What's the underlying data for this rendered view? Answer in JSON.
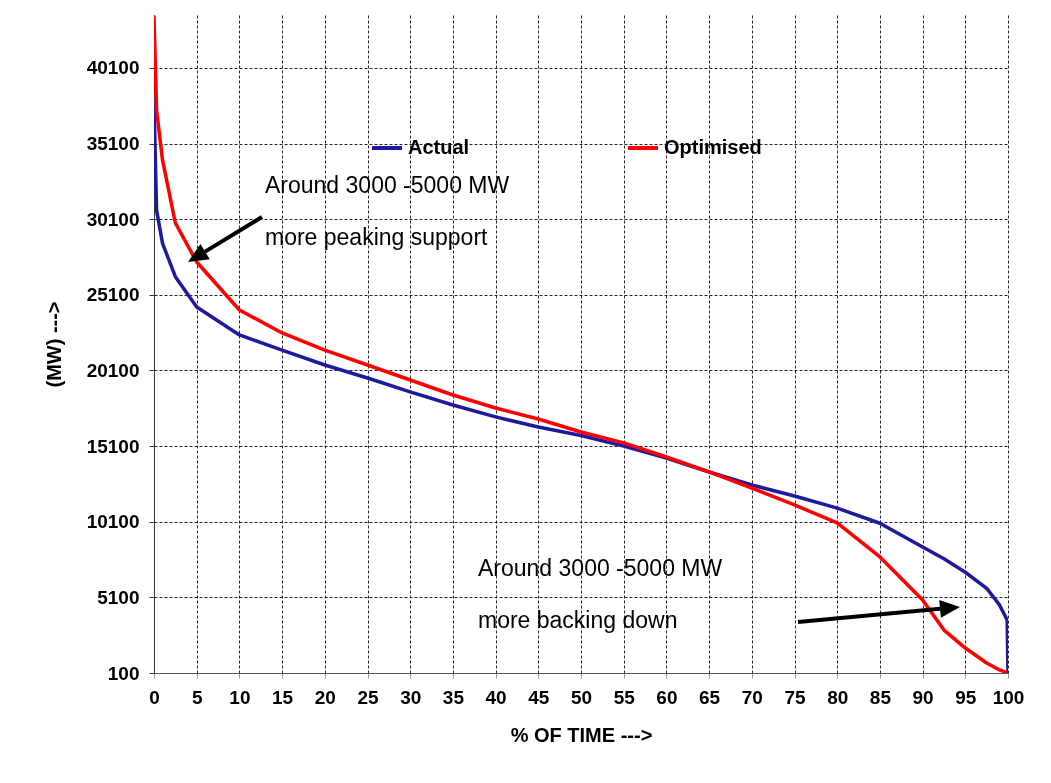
{
  "chart_data": {
    "type": "line",
    "xlabel": "% OF TIME --->",
    "ylabel": "(MW) --->",
    "x": [
      0,
      0.3,
      1,
      2.5,
      5,
      10,
      15,
      20,
      25,
      30,
      35,
      40,
      45,
      50,
      55,
      60,
      65,
      70,
      75,
      80,
      85,
      90,
      92.5,
      95,
      97.5,
      99,
      99.9,
      100
    ],
    "series": [
      {
        "name": "Actual",
        "color": "#1f1a9c",
        "values": [
          37800,
          30700,
          28500,
          26300,
          24300,
          22450,
          21450,
          20460,
          19600,
          18680,
          17820,
          17030,
          16360,
          15800,
          15100,
          14310,
          13390,
          12530,
          11800,
          11000,
          10000,
          8430,
          7650,
          6760,
          5700,
          4600,
          3600,
          100
        ]
      },
      {
        "name": "Optimised",
        "color": "#ff0000",
        "values": [
          43470,
          37300,
          34000,
          29850,
          27270,
          24100,
          22580,
          21450,
          20460,
          19470,
          18480,
          17620,
          16890,
          16030,
          15310,
          14380,
          13390,
          12330,
          11210,
          10020,
          7770,
          4930,
          2940,
          1750,
          760,
          300,
          120,
          100
        ]
      }
    ],
    "xlim": [
      0,
      100
    ],
    "ylim": [
      100,
      43600
    ],
    "xticks": [
      0,
      5,
      10,
      15,
      20,
      25,
      30,
      35,
      40,
      45,
      50,
      55,
      60,
      65,
      70,
      75,
      80,
      85,
      90,
      95,
      100
    ],
    "yticks": [
      100,
      5100,
      10100,
      15100,
      20100,
      25100,
      30100,
      35100,
      40100
    ],
    "grid": true,
    "legend": "top",
    "annotations": [
      "Around 3000 -5000 MW\nmore peaking support",
      "Around 3000 -5000 MW\nmore backing down"
    ]
  }
}
